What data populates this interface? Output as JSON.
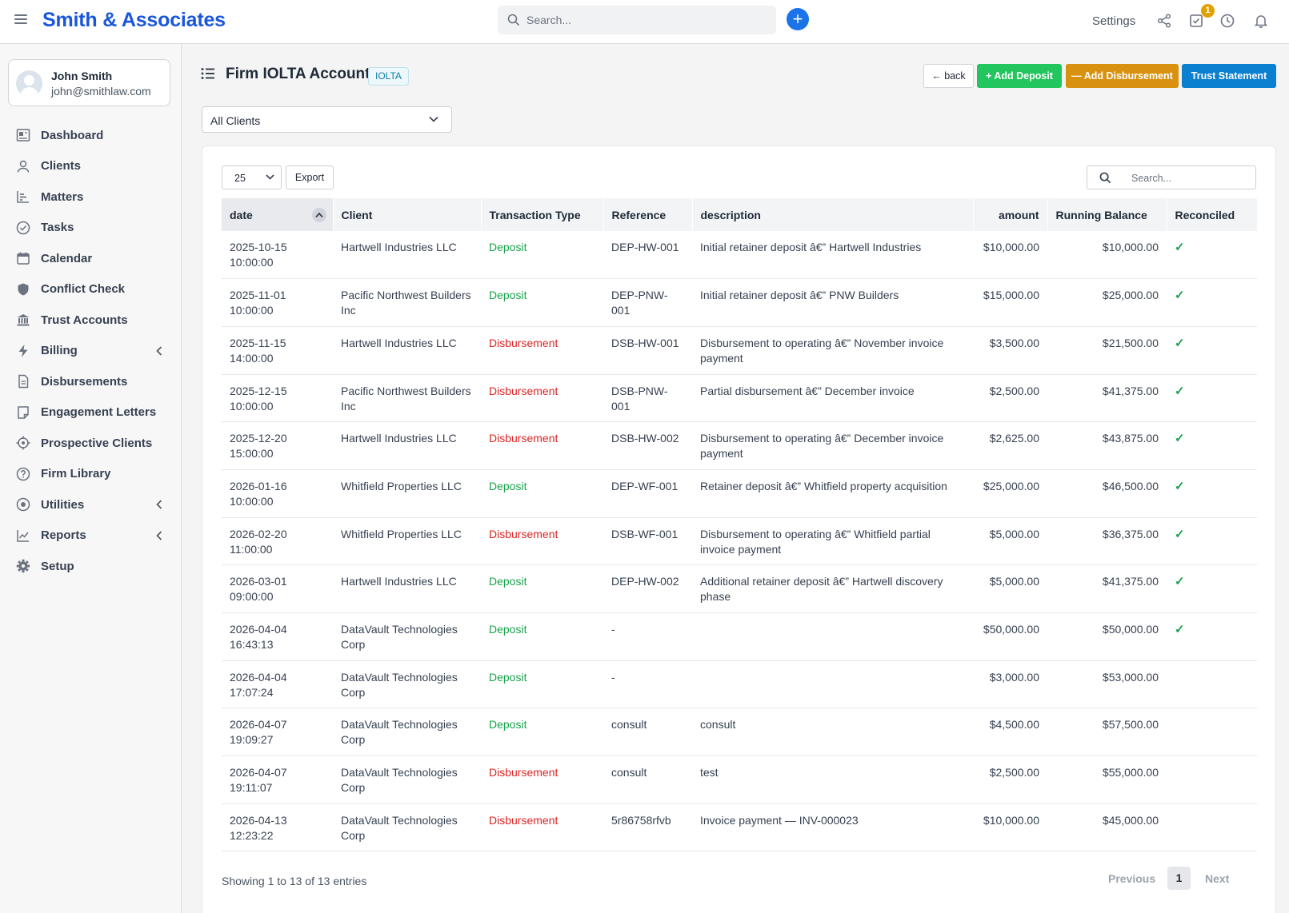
{
  "app": {
    "brand": "Smith & Associates"
  },
  "topbar": {
    "search_placeholder": "Search...",
    "settings_label": "Settings",
    "tasks_badge": "1"
  },
  "user": {
    "name": "John Smith",
    "email": "john@smithlaw.com"
  },
  "sidebar": {
    "items": [
      {
        "label": "Dashboard",
        "icon": "dashboard-icon"
      },
      {
        "label": "Clients",
        "icon": "user-icon"
      },
      {
        "label": "Matters",
        "icon": "chart-icon"
      },
      {
        "label": "Tasks",
        "icon": "check-circle-icon"
      },
      {
        "label": "Calendar",
        "icon": "calendar-icon"
      },
      {
        "label": "Conflict Check",
        "icon": "shield-icon"
      },
      {
        "label": "Trust Accounts",
        "icon": "bank-icon"
      },
      {
        "label": "Billing",
        "icon": "bolt-icon",
        "expandable": true
      },
      {
        "label": "Disbursements",
        "icon": "document-icon"
      },
      {
        "label": "Engagement Letters",
        "icon": "letter-icon"
      },
      {
        "label": "Prospective Clients",
        "icon": "target-icon"
      },
      {
        "label": "Firm Library",
        "icon": "help-icon"
      },
      {
        "label": "Utilities",
        "icon": "dot-circle-icon",
        "expandable": true
      },
      {
        "label": "Reports",
        "icon": "line-chart-icon",
        "expandable": true
      },
      {
        "label": "Setup",
        "icon": "gear-icon"
      }
    ]
  },
  "page": {
    "title": "Firm IOLTA Account",
    "badge": "IOLTA",
    "buttons": {
      "back": "back",
      "add_deposit": "Add Deposit",
      "add_disbursement": "Add Disbursement",
      "trust_statement": "Trust Statement"
    },
    "client_filter": "All Clients"
  },
  "table_controls": {
    "page_length": "25",
    "export_label": "Export",
    "search_placeholder": "Search..."
  },
  "table": {
    "columns": [
      "date",
      "Client",
      "Transaction Type",
      "Reference",
      "description",
      "amount",
      "Running Balance",
      "Reconciled"
    ],
    "rows": [
      {
        "date": "2025-10-15",
        "time": "10:00:00",
        "client": "Hartwell Industries LLC",
        "type": "Deposit",
        "ref": "DEP-HW-001",
        "desc": "Initial retainer deposit â€” Hartwell Industries",
        "amount": "$10,000.00",
        "balance": "$10,000.00",
        "reconciled": "✓"
      },
      {
        "date": "2025-11-01",
        "time": "10:00:00",
        "client": "Pacific Northwest Builders Inc",
        "type": "Deposit",
        "ref": "DEP-PNW-001",
        "desc": "Initial retainer deposit â€” PNW Builders",
        "amount": "$15,000.00",
        "balance": "$25,000.00",
        "reconciled": "✓"
      },
      {
        "date": "2025-11-15",
        "time": "14:00:00",
        "client": "Hartwell Industries LLC",
        "type": "Disbursement",
        "ref": "DSB-HW-001",
        "desc": "Disbursement to operating â€” November invoice payment",
        "amount": "$3,500.00",
        "balance": "$21,500.00",
        "reconciled": "✓"
      },
      {
        "date": "2025-12-15",
        "time": "10:00:00",
        "client": "Pacific Northwest Builders Inc",
        "type": "Disbursement",
        "ref": "DSB-PNW-001",
        "desc": "Partial disbursement â€” December invoice",
        "amount": "$2,500.00",
        "balance": "$41,375.00",
        "reconciled": "✓"
      },
      {
        "date": "2025-12-20",
        "time": "15:00:00",
        "client": "Hartwell Industries LLC",
        "type": "Disbursement",
        "ref": "DSB-HW-002",
        "desc": "Disbursement to operating â€” December invoice payment",
        "amount": "$2,625.00",
        "balance": "$43,875.00",
        "reconciled": "✓"
      },
      {
        "date": "2026-01-16",
        "time": "10:00:00",
        "client": "Whitfield Properties LLC",
        "type": "Deposit",
        "ref": "DEP-WF-001",
        "desc": "Retainer deposit â€” Whitfield property acquisition",
        "amount": "$25,000.00",
        "balance": "$46,500.00",
        "reconciled": "✓"
      },
      {
        "date": "2026-02-20",
        "time": "11:00:00",
        "client": "Whitfield Properties LLC",
        "type": "Disbursement",
        "ref": "DSB-WF-001",
        "desc": "Disbursement to operating â€” Whitfield partial invoice payment",
        "amount": "$5,000.00",
        "balance": "$36,375.00",
        "reconciled": "✓"
      },
      {
        "date": "2026-03-01",
        "time": "09:00:00",
        "client": "Hartwell Industries LLC",
        "type": "Deposit",
        "ref": "DEP-HW-002",
        "desc": "Additional retainer deposit â€” Hartwell discovery phase",
        "amount": "$5,000.00",
        "balance": "$41,375.00",
        "reconciled": "✓"
      },
      {
        "date": "2026-04-04",
        "time": "16:43:13",
        "client": "DataVault Technologies Corp",
        "type": "Deposit",
        "ref": "-",
        "desc": "",
        "amount": "$50,000.00",
        "balance": "$50,000.00",
        "reconciled": "✓"
      },
      {
        "date": "2026-04-04",
        "time": "17:07:24",
        "client": "DataVault Technologies Corp",
        "type": "Deposit",
        "ref": "-",
        "desc": "",
        "amount": "$3,000.00",
        "balance": "$53,000.00",
        "reconciled": ""
      },
      {
        "date": "2026-04-07",
        "time": "19:09:27",
        "client": "DataVault Technologies Corp",
        "type": "Deposit",
        "ref": "consult",
        "desc": "consult",
        "amount": "$4,500.00",
        "balance": "$57,500.00",
        "reconciled": ""
      },
      {
        "date": "2026-04-07",
        "time": "19:11:07",
        "client": "DataVault Technologies Corp",
        "type": "Disbursement",
        "ref": "consult",
        "desc": "test",
        "amount": "$2,500.00",
        "balance": "$55,000.00",
        "reconciled": ""
      },
      {
        "date": "2026-04-13",
        "time": "12:23:22",
        "client": "DataVault Technologies Corp",
        "type": "Disbursement",
        "ref": "5r86758rfvb",
        "desc": "Invoice payment — INV-000023",
        "amount": "$10,000.00",
        "balance": "$45,000.00",
        "reconciled": ""
      }
    ]
  },
  "footer": {
    "info": "Showing 1 to 13 of 13 entries",
    "previous": "Previous",
    "current_page": "1",
    "next": "Next"
  },
  "colors": {
    "brand": "#1a56db",
    "deposit": "#16a34a",
    "disbursement": "#dc2626",
    "add_deposit": "#22c55e",
    "add_disbursement": "#d9920f",
    "trust_statement": "#0b7fd0"
  }
}
